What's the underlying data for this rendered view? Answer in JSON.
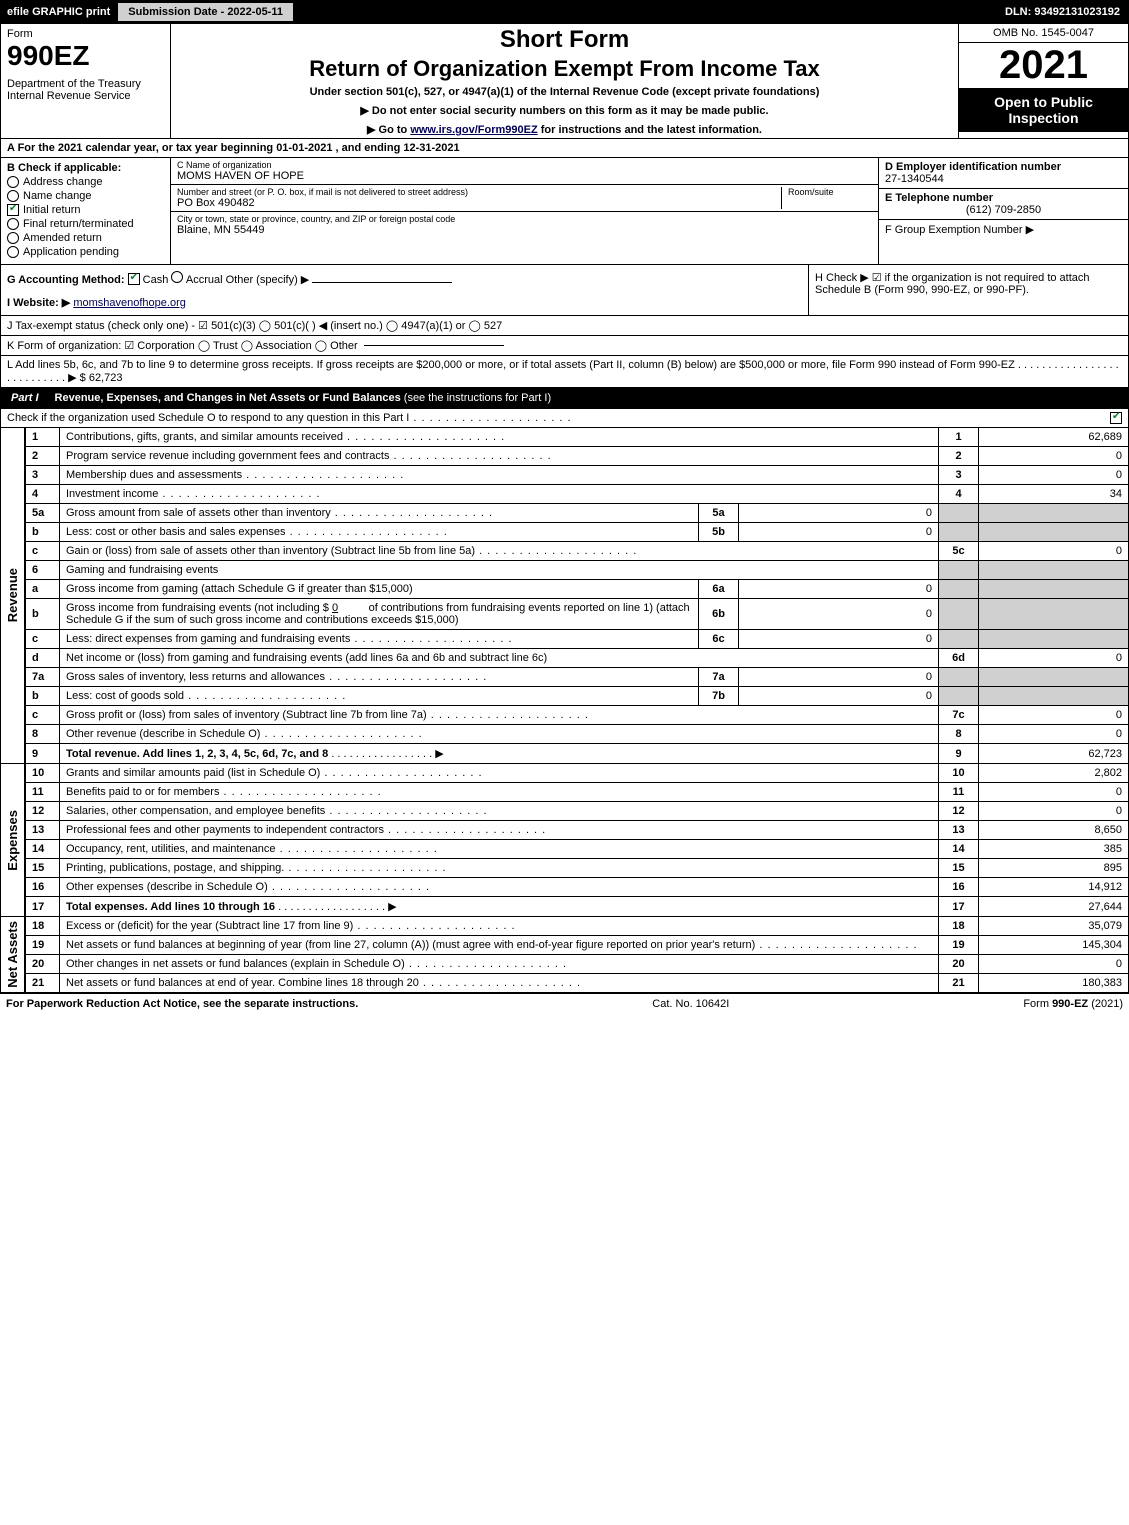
{
  "topbar": {
    "efile": "efile GRAPHIC print",
    "subdate": "Submission Date - 2022-05-11",
    "dln": "DLN: 93492131023192"
  },
  "header": {
    "form_label": "Form",
    "form_number": "990EZ",
    "dept": "Department of the Treasury\nInternal Revenue Service",
    "short": "Short Form",
    "title": "Return of Organization Exempt From Income Tax",
    "under": "Under section 501(c), 527, or 4947(a)(1) of the Internal Revenue Code (except private foundations)",
    "note1": "▶ Do not enter social security numbers on this form as it may be made public.",
    "note2_pre": "▶ Go to ",
    "note2_link": "www.irs.gov/Form990EZ",
    "note2_post": " for instructions and the latest information.",
    "omb": "OMB No. 1545-0047",
    "year": "2021",
    "open": "Open to Public Inspection"
  },
  "row_a": "A  For the 2021 calendar year, or tax year beginning 01-01-2021 , and ending 12-31-2021",
  "col_b": {
    "title": "B  Check if applicable:",
    "items": [
      "Address change",
      "Name change",
      "Initial return",
      "Final return/terminated",
      "Amended return",
      "Application pending"
    ],
    "checked_index": 2
  },
  "col_c": {
    "name_label": "C Name of organization",
    "name": "MOMS HAVEN OF HOPE",
    "addr_label": "Number and street (or P. O. box, if mail is not delivered to street address)",
    "room_label": "Room/suite",
    "addr": "PO Box 490482",
    "city_label": "City or town, state or province, country, and ZIP or foreign postal code",
    "city": "Blaine, MN  55449"
  },
  "col_d": {
    "ein_label": "D Employer identification number",
    "ein": "27-1340544",
    "tel_label": "E Telephone number",
    "tel": "(612) 709-2850",
    "grp_label": "F Group Exemption Number   ▶"
  },
  "row_g": {
    "label": "G Accounting Method:",
    "cash": "Cash",
    "accrual": "Accrual",
    "other": "Other (specify) ▶"
  },
  "row_h": "H  Check ▶ ☑ if the organization is not required to attach Schedule B (Form 990, 990-EZ, or 990-PF).",
  "row_i": {
    "label": "I Website: ▶",
    "value": "momshavenofhope.org"
  },
  "row_j": "J Tax-exempt status (check only one) - ☑ 501(c)(3) ◯ 501(c)(  ) ◀ (insert no.) ◯ 4947(a)(1) or ◯ 527",
  "row_k": "K Form of organization:  ☑ Corporation  ◯ Trust  ◯ Association  ◯ Other",
  "row_l": {
    "text": "L Add lines 5b, 6c, and 7b to line 9 to determine gross receipts. If gross receipts are $200,000 or more, or if total assets (Part II, column (B) below) are $500,000 or more, file Form 990 instead of Form 990-EZ  .  .  .  .  .  .  .  .  .  .  .  .  .  .  .  .  .  .  .  .  .  .  .  .  .  .  .  ▶ $",
    "amount": " 62,723"
  },
  "part1": {
    "tag": "Part I",
    "title": "Revenue, Expenses, and Changes in Net Assets or Fund Balances",
    "sub": " (see the instructions for Part I)",
    "check": "Check if the organization used Schedule O to respond to any question in this Part I"
  },
  "revenue": {
    "side": "Revenue",
    "lines": [
      {
        "n": "1",
        "d": "Contributions, gifts, grants, and similar amounts received",
        "r": "1",
        "a": "62,689"
      },
      {
        "n": "2",
        "d": "Program service revenue including government fees and contracts",
        "r": "2",
        "a": "0"
      },
      {
        "n": "3",
        "d": "Membership dues and assessments",
        "r": "3",
        "a": "0"
      },
      {
        "n": "4",
        "d": "Investment income",
        "r": "4",
        "a": "34"
      }
    ],
    "l5a": {
      "n": "5a",
      "d": "Gross amount from sale of assets other than inventory",
      "m": "5a",
      "mv": "0"
    },
    "l5b": {
      "n": "b",
      "d": "Less: cost or other basis and sales expenses",
      "m": "5b",
      "mv": "0"
    },
    "l5c": {
      "n": "c",
      "d": "Gain or (loss) from sale of assets other than inventory (Subtract line 5b from line 5a)",
      "r": "5c",
      "a": "0"
    },
    "l6": {
      "n": "6",
      "d": "Gaming and fundraising events"
    },
    "l6a": {
      "n": "a",
      "d": "Gross income from gaming (attach Schedule G if greater than $15,000)",
      "m": "6a",
      "mv": "0"
    },
    "l6b": {
      "n": "b",
      "d1": "Gross income from fundraising events (not including $",
      "d1v": "0",
      "d2": "of contributions from fundraising events reported on line 1) (attach Schedule G if the sum of such gross income and contributions exceeds $15,000)",
      "m": "6b",
      "mv": "0"
    },
    "l6c": {
      "n": "c",
      "d": "Less: direct expenses from gaming and fundraising events",
      "m": "6c",
      "mv": "0"
    },
    "l6d": {
      "n": "d",
      "d": "Net income or (loss) from gaming and fundraising events (add lines 6a and 6b and subtract line 6c)",
      "r": "6d",
      "a": "0"
    },
    "l7a": {
      "n": "7a",
      "d": "Gross sales of inventory, less returns and allowances",
      "m": "7a",
      "mv": "0"
    },
    "l7b": {
      "n": "b",
      "d": "Less: cost of goods sold",
      "m": "7b",
      "mv": "0"
    },
    "l7c": {
      "n": "c",
      "d": "Gross profit or (loss) from sales of inventory (Subtract line 7b from line 7a)",
      "r": "7c",
      "a": "0"
    },
    "l8": {
      "n": "8",
      "d": "Other revenue (describe in Schedule O)",
      "r": "8",
      "a": "0"
    },
    "l9": {
      "n": "9",
      "d": "Total revenue. Add lines 1, 2, 3, 4, 5c, 6d, 7c, and 8",
      "r": "9",
      "a": "62,723",
      "bold": true
    }
  },
  "expenses": {
    "side": "Expenses",
    "lines": [
      {
        "n": "10",
        "d": "Grants and similar amounts paid (list in Schedule O)",
        "r": "10",
        "a": "2,802"
      },
      {
        "n": "11",
        "d": "Benefits paid to or for members",
        "r": "11",
        "a": "0"
      },
      {
        "n": "12",
        "d": "Salaries, other compensation, and employee benefits",
        "r": "12",
        "a": "0"
      },
      {
        "n": "13",
        "d": "Professional fees and other payments to independent contractors",
        "r": "13",
        "a": "8,650"
      },
      {
        "n": "14",
        "d": "Occupancy, rent, utilities, and maintenance",
        "r": "14",
        "a": "385"
      },
      {
        "n": "15",
        "d": "Printing, publications, postage, and shipping.",
        "r": "15",
        "a": "895"
      },
      {
        "n": "16",
        "d": "Other expenses (describe in Schedule O)",
        "r": "16",
        "a": "14,912"
      },
      {
        "n": "17",
        "d": "Total expenses. Add lines 10 through 16",
        "r": "17",
        "a": "27,644",
        "bold": true
      }
    ]
  },
  "netassets": {
    "side": "Net Assets",
    "lines": [
      {
        "n": "18",
        "d": "Excess or (deficit) for the year (Subtract line 17 from line 9)",
        "r": "18",
        "a": "35,079"
      },
      {
        "n": "19",
        "d": "Net assets or fund balances at beginning of year (from line 27, column (A)) (must agree with end-of-year figure reported on prior year's return)",
        "r": "19",
        "a": "145,304"
      },
      {
        "n": "20",
        "d": "Other changes in net assets or fund balances (explain in Schedule O)",
        "r": "20",
        "a": "0"
      },
      {
        "n": "21",
        "d": "Net assets or fund balances at end of year. Combine lines 18 through 20",
        "r": "21",
        "a": "180,383"
      }
    ]
  },
  "footer": {
    "left": "For Paperwork Reduction Act Notice, see the separate instructions.",
    "mid": "Cat. No. 10642I",
    "right": "Form 990-EZ (2021)"
  }
}
